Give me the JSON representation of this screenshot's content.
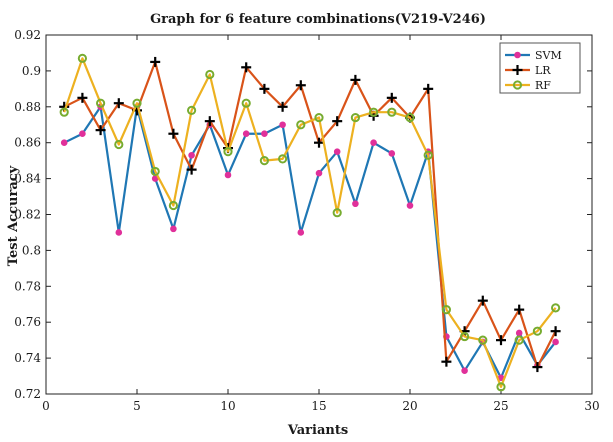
{
  "chart_data": {
    "type": "line",
    "title": "Graph for 6 feature combinations(V219-V246)",
    "xlabel": "Variants",
    "ylabel": "Test Accuracy",
    "xlim": [
      0,
      30
    ],
    "ylim": [
      0.72,
      0.92
    ],
    "xticks": [
      0,
      5,
      10,
      15,
      20,
      25,
      30
    ],
    "yticks": [
      0.72,
      0.74,
      0.76,
      0.78,
      0.8,
      0.82,
      0.84,
      0.86,
      0.88,
      0.9,
      0.92
    ],
    "ytick_labels": [
      "0.72",
      "0.74",
      "0.76",
      "0.78",
      "0.8",
      "0.82",
      "0.84",
      "0.86",
      "0.88",
      "0.9",
      "0.92"
    ],
    "grid": false,
    "legend_position": "top-right",
    "x": [
      1,
      2,
      3,
      4,
      5,
      6,
      7,
      8,
      9,
      10,
      11,
      12,
      13,
      14,
      15,
      16,
      17,
      18,
      19,
      20,
      21,
      22,
      23,
      24,
      25,
      26,
      27,
      28
    ],
    "series": [
      {
        "name": "SVM",
        "color": "#1f77b4",
        "marker": "dot",
        "marker_color": "#e0309a",
        "values": [
          0.86,
          0.865,
          0.88,
          0.81,
          0.88,
          0.84,
          0.812,
          0.853,
          0.87,
          0.842,
          0.865,
          0.865,
          0.87,
          0.81,
          0.843,
          0.855,
          0.826,
          0.86,
          0.854,
          0.825,
          0.855,
          0.752,
          0.733,
          0.749,
          0.729,
          0.754,
          0.736,
          0.749
        ]
      },
      {
        "name": "LR",
        "color": "#d95319",
        "marker": "plus",
        "marker_color": "#000000",
        "values": [
          0.88,
          0.885,
          0.867,
          0.882,
          0.878,
          0.905,
          0.865,
          0.845,
          0.872,
          0.857,
          0.902,
          0.89,
          0.88,
          0.892,
          0.86,
          0.872,
          0.895,
          0.875,
          0.885,
          0.874,
          0.89,
          0.738,
          0.755,
          0.772,
          0.75,
          0.767,
          0.735,
          0.755
        ]
      },
      {
        "name": "RF",
        "color": "#edb120",
        "marker": "circle",
        "marker_color": "#77ac30",
        "values": [
          0.877,
          0.907,
          0.882,
          0.859,
          0.882,
          0.844,
          0.825,
          0.878,
          0.898,
          0.855,
          0.882,
          0.85,
          0.851,
          0.87,
          0.874,
          0.821,
          0.874,
          0.877,
          0.877,
          0.874,
          0.853,
          0.767,
          0.752,
          0.75,
          0.724,
          0.75,
          0.755,
          0.768
        ]
      }
    ]
  }
}
